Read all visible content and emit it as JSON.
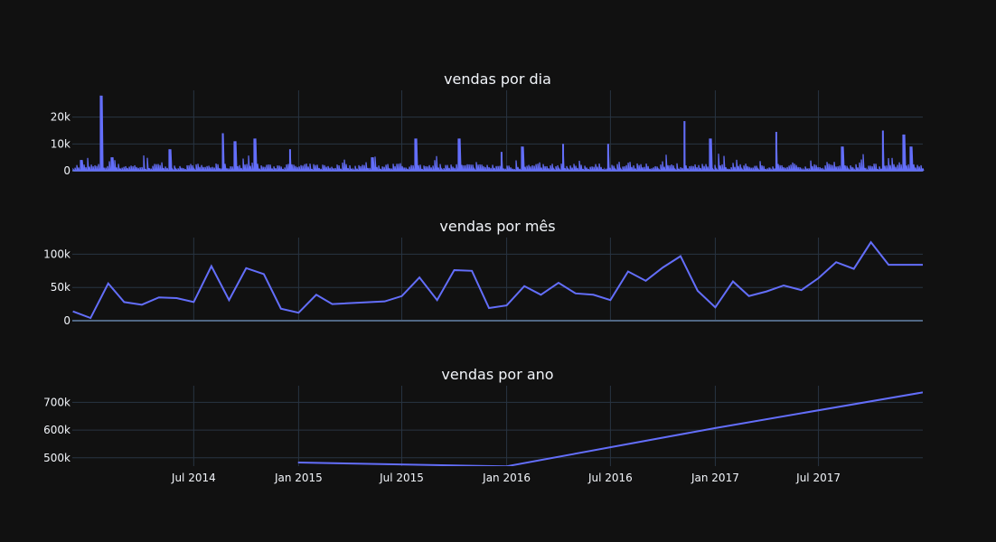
{
  "chart_data": [
    {
      "type": "line",
      "title": "vendas por dia",
      "xlabel": "",
      "ylabel": "",
      "ylim": [
        0,
        30000
      ],
      "yticks": [
        {
          "v": 0,
          "label": "0"
        },
        {
          "v": 10000,
          "label": "10k"
        },
        {
          "v": 20000,
          "label": "20k"
        }
      ],
      "x_range": [
        "2013-11-30",
        "2017-12-31"
      ],
      "spikes": [
        {
          "x": "2013-12-16",
          "y": 4000
        },
        {
          "x": "2014-01-19",
          "y": 28000
        },
        {
          "x": "2014-02-08",
          "y": 5000
        },
        {
          "x": "2014-05-20",
          "y": 8000
        },
        {
          "x": "2014-08-21",
          "y": 14000
        },
        {
          "x": "2014-09-12",
          "y": 11000
        },
        {
          "x": "2014-10-17",
          "y": 12000
        },
        {
          "x": "2014-12-17",
          "y": 8000
        },
        {
          "x": "2015-05-10",
          "y": 5000
        },
        {
          "x": "2015-07-26",
          "y": 12000
        },
        {
          "x": "2015-10-10",
          "y": 12000
        },
        {
          "x": "2015-12-23",
          "y": 7000
        },
        {
          "x": "2016-01-28",
          "y": 9000
        },
        {
          "x": "2016-04-09",
          "y": 10000
        },
        {
          "x": "2016-06-27",
          "y": 10000
        },
        {
          "x": "2016-11-08",
          "y": 18500
        },
        {
          "x": "2016-12-23",
          "y": 12000
        },
        {
          "x": "2017-04-18",
          "y": 14500
        },
        {
          "x": "2017-08-12",
          "y": 9000
        },
        {
          "x": "2017-10-22",
          "y": 15000
        },
        {
          "x": "2017-11-28",
          "y": 13500
        },
        {
          "x": "2017-12-10",
          "y": 9000
        }
      ]
    },
    {
      "type": "line",
      "title": "vendas por mês",
      "xlabel": "",
      "ylabel": "",
      "ylim": [
        0,
        125000
      ],
      "yticks": [
        {
          "v": 0,
          "label": "0"
        },
        {
          "v": 50000,
          "label": "50k"
        },
        {
          "v": 100000,
          "label": "100k"
        }
      ],
      "x": [
        "2013-12-01",
        "2014-01-01",
        "2014-02-01",
        "2014-03-01",
        "2014-04-01",
        "2014-05-01",
        "2014-06-01",
        "2014-07-01",
        "2014-08-01",
        "2014-09-01",
        "2014-10-01",
        "2014-11-01",
        "2014-12-01",
        "2015-01-01",
        "2015-02-01",
        "2015-03-01",
        "2015-06-01",
        "2015-07-01",
        "2015-08-01",
        "2015-09-01",
        "2015-10-01",
        "2015-11-01",
        "2015-12-01",
        "2016-01-01",
        "2016-02-01",
        "2016-03-01",
        "2016-04-01",
        "2016-05-01",
        "2016-06-01",
        "2016-07-01",
        "2016-08-01",
        "2016-09-01",
        "2016-10-01",
        "2016-11-01",
        "2016-12-01",
        "2017-01-01",
        "2017-02-01",
        "2017-03-01",
        "2017-04-01",
        "2017-05-01",
        "2017-06-01",
        "2017-07-01",
        "2017-08-01",
        "2017-09-01",
        "2017-10-01",
        "2017-11-01",
        "2017-12-01",
        "2018-01-01"
      ],
      "y": [
        14000,
        4000,
        56000,
        28000,
        24000,
        35000,
        34000,
        28000,
        82000,
        31000,
        79000,
        70000,
        18000,
        12000,
        39000,
        25000,
        29000,
        37000,
        65000,
        31000,
        76000,
        75000,
        19000,
        23000,
        52000,
        39000,
        57000,
        41000,
        39000,
        31000,
        74000,
        60000,
        80000,
        97000,
        45000,
        20000,
        59000,
        37000,
        44000,
        53000,
        46000,
        64000,
        88000,
        78000,
        118000,
        84000,
        84000,
        84000
      ]
    },
    {
      "type": "line",
      "title": "vendas por ano",
      "xlabel": "",
      "ylabel": "",
      "ylim": [
        470000,
        760000
      ],
      "yticks": [
        {
          "v": 500000,
          "label": "500k"
        },
        {
          "v": 600000,
          "label": "600k"
        },
        {
          "v": 700000,
          "label": "700k"
        }
      ],
      "x": [
        "2014-12-31",
        "2015-12-31",
        "2016-12-31",
        "2017-12-31"
      ],
      "y": [
        483000,
        469000,
        607000,
        736000
      ]
    }
  ],
  "x_axis": {
    "ticks": [
      {
        "date": "2014-07-01",
        "label": "Jul 2014"
      },
      {
        "date": "2015-01-01",
        "label": "Jan 2015"
      },
      {
        "date": "2015-07-01",
        "label": "Jul 2015"
      },
      {
        "date": "2016-01-01",
        "label": "Jan 2016"
      },
      {
        "date": "2016-07-01",
        "label": "Jul 2016"
      },
      {
        "date": "2017-01-01",
        "label": "Jan 2017"
      },
      {
        "date": "2017-07-01",
        "label": "Jul 2017"
      }
    ]
  },
  "colors": {
    "background": "#111111",
    "series": "#636efa",
    "grid": "#283442",
    "zeroline": "#506784",
    "text": "#f2f5fa"
  }
}
